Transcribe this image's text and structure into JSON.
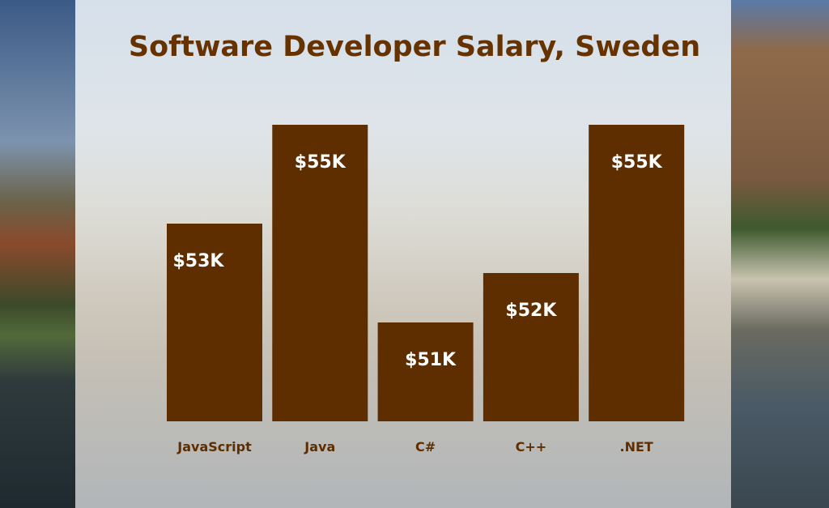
{
  "chart_data": {
    "type": "bar",
    "title": "Software Developer Salary, Sweden",
    "categories": [
      "JavaScript",
      "Java",
      "C#",
      "C++",
      ".NET"
    ],
    "values": [
      53,
      55,
      51,
      52,
      55
    ],
    "data_labels": [
      "$53K",
      "$55K",
      "$51K",
      "$52K",
      "$55K"
    ],
    "unit": "K USD",
    "xlabel": "",
    "ylabel": "",
    "ylim": [
      49,
      55
    ],
    "grid": false,
    "legend": "none",
    "colors": {
      "bar": "#5e2e00",
      "title": "#663300",
      "data_label": "#ffffff",
      "tick_label": "#5e2e00"
    }
  }
}
